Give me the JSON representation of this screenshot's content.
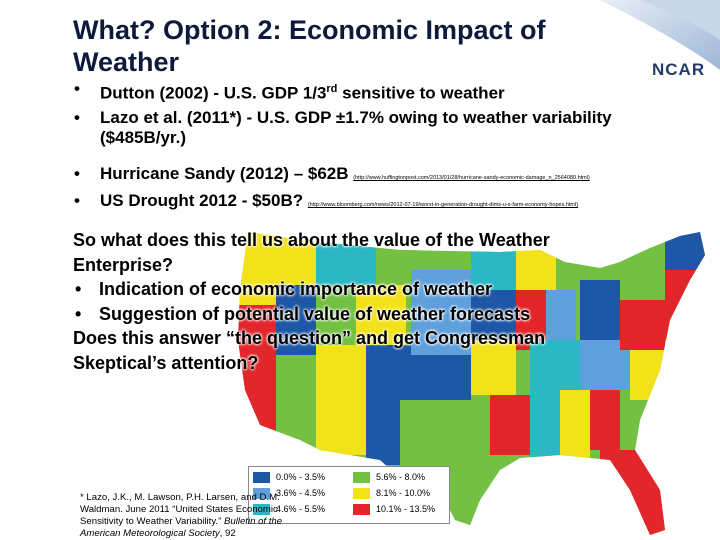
{
  "slide": {
    "title": "What? Option 2: Economic Impact of Weather",
    "logo": "NCAR",
    "bullets": [
      {
        "before": "Dutton (2002) - U.S. GDP 1/3",
        "sup": "rd",
        "after": " sensitive to weather"
      },
      {
        "text": "Lazo et al. (2011*) - U.S. GDP ±1.7% owing to weather variability ($485B/yr.)"
      },
      {
        "text": "Hurricane Sandy (2012) – $62B",
        "link": "(http://www.huffingtonpost.com/2013/01/28/hurricane-sandy-economic-damage_n_2564080.html)"
      },
      {
        "text": "US Drought 2012 - $50B?",
        "link": "(http://www.bloomberg.com/news/2012-07-19/worst-in-generation-drought-dims-u-s-farm-economy-hopes.html)"
      }
    ],
    "question": "So what does this tell us about the value of the Weather Enterprise?",
    "sub_bullets": [
      "Indication of economic importance of weather",
      "Suggestion of potential value of weather forecasts"
    ],
    "closing": "Does this answer “the question” and get Congressman Skeptical’s attention?",
    "legend": [
      {
        "label": "0.0% - 3.5%",
        "color": "#1d57a5"
      },
      {
        "label": "3.6% - 4.5%",
        "color": "#5fa0dc"
      },
      {
        "label": "4.6% - 5.5%",
        "color": "#2bb7c4"
      },
      {
        "label": "5.6% - 8.0%",
        "color": "#74c043"
      },
      {
        "label": "8.1% - 10.0%",
        "color": "#f2e21a"
      },
      {
        "label": "10.1% - 13.5%",
        "color": "#e2262b"
      }
    ],
    "citation": {
      "before": "* Lazo, J.K., M. Lawson, P.H. Larsen, and D.M. Waldman. June 2011 “United States Economic Sensitivity to Weather Variability.” ",
      "journal": "Bulletin of the American Meteorological Society",
      "after": ", 92"
    }
  }
}
